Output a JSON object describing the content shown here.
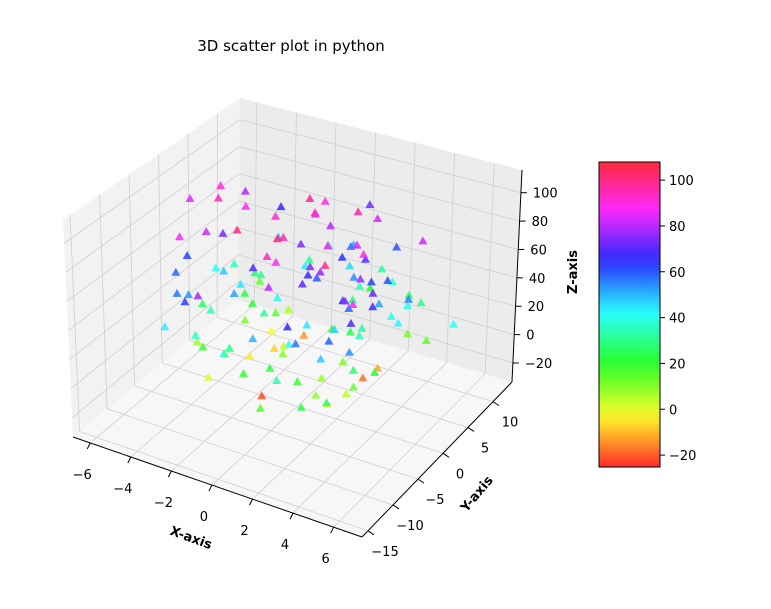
{
  "chart_data": {
    "type": "scatter",
    "projection": "3d",
    "title": "3D scatter plot in python",
    "xlabel": "X-axis",
    "ylabel": "Y-axis",
    "zlabel": "Z-axis",
    "marker": "triangle-up",
    "colormap": "hsv",
    "color_by": "z",
    "grid": true,
    "xlim": [
      -6.85,
      7.4
    ],
    "ylim": [
      -16.2,
      13.8
    ],
    "zlim": [
      -33.4,
      116
    ],
    "xticks": [
      "−6",
      "−4",
      "−2",
      "0",
      "2",
      "4",
      "6"
    ],
    "xtick_values": [
      -6,
      -4,
      -2,
      0,
      2,
      4,
      6
    ],
    "yticks": [
      "−15",
      "−10",
      "−5",
      "0",
      "5",
      "10"
    ],
    "ytick_values": [
      -15,
      -10,
      -5,
      0,
      5,
      10
    ],
    "zticks": [
      "−20",
      "0",
      "20",
      "40",
      "60",
      "80",
      "100"
    ],
    "ztick_values": [
      -20,
      0,
      20,
      40,
      60,
      80,
      100
    ],
    "colorbar": {
      "range": [
        -25.2,
        107.9
      ],
      "ticks": [
        "−20",
        "0",
        "20",
        "40",
        "60",
        "80",
        "100"
      ],
      "tick_values": [
        -20,
        0,
        20,
        40,
        60,
        80,
        100
      ],
      "placement": "right"
    },
    "points": [
      [
        -3.2,
        2.1,
        88
      ],
      [
        1.5,
        -4.2,
        45
      ],
      [
        3.8,
        6.5,
        12
      ],
      [
        -1.2,
        -8.3,
        30
      ],
      [
        2.4,
        3.3,
        70
      ],
      [
        -4.1,
        0.5,
        95
      ],
      [
        0.3,
        9.1,
        52
      ],
      [
        4.5,
        -2.7,
        20
      ],
      [
        -2.6,
        -3.9,
        5
      ],
      [
        1.9,
        7.4,
        83
      ],
      [
        -0.7,
        -11.2,
        38
      ],
      [
        3.1,
        1.8,
        62
      ],
      [
        -3.7,
        5.6,
        27
      ],
      [
        2.8,
        -6.1,
        99
      ],
      [
        -1.9,
        2.9,
        15
      ],
      [
        0.9,
        -1.4,
        74
      ],
      [
        4.2,
        4.7,
        40
      ],
      [
        -4.6,
        -5.3,
        58
      ],
      [
        1.3,
        10.8,
        33
      ],
      [
        -2.2,
        -0.8,
        -5
      ],
      [
        3.5,
        -9.4,
        48
      ],
      [
        -0.4,
        6.2,
        90
      ],
      [
        2.1,
        -3.5,
        8
      ],
      [
        -3.3,
        8.8,
        66
      ],
      [
        0.6,
        -7.6,
        22
      ],
      [
        4.8,
        2.4,
        55
      ],
      [
        -1.6,
        -12.5,
        78
      ],
      [
        2.7,
        5.1,
        -12
      ],
      [
        -4.4,
        1.1,
        42
      ],
      [
        0.2,
        -4.9,
        102
      ],
      [
        3.3,
        -1.1,
        35
      ],
      [
        -2.9,
        -6.8,
        18
      ],
      [
        1.1,
        3.9,
        64
      ],
      [
        -3.9,
        -2.4,
        81
      ],
      [
        4.0,
        8.2,
        29
      ],
      [
        -0.9,
        0.7,
        3
      ],
      [
        2.5,
        -10.3,
        57
      ],
      [
        -4.8,
        3.4,
        92
      ],
      [
        0.7,
        6.9,
        46
      ],
      [
        3.9,
        -4.4,
        13
      ],
      [
        -1.4,
        -3.2,
        69
      ],
      [
        2.2,
        1.5,
        24
      ],
      [
        -3.0,
        7.3,
        50
      ],
      [
        4.6,
        -7.9,
        86
      ],
      [
        -0.2,
        -2.1,
        10
      ],
      [
        1.7,
        4.4,
        97
      ],
      [
        -2.5,
        -9.6,
        37
      ],
      [
        3.6,
        3.0,
        61
      ],
      [
        -4.3,
        -1.7,
        26
      ],
      [
        0.4,
        11.6,
        73
      ],
      [
        2.9,
        -5.6,
        1
      ],
      [
        -1.1,
        5.3,
        44
      ],
      [
        3.2,
        -0.3,
        89
      ],
      [
        -3.5,
        -7.1,
        53
      ],
      [
        1.0,
        2.6,
        17
      ],
      [
        4.4,
        -3.1,
        67
      ],
      [
        -2.0,
        9.4,
        31
      ],
      [
        0.1,
        -6.4,
        94
      ],
      [
        2.6,
        7.9,
        39
      ],
      [
        -4.0,
        -3.8,
        7
      ],
      [
        1.6,
        -2.2,
        76
      ],
      [
        -2.8,
        1.9,
        21
      ],
      [
        3.7,
        -8.7,
        59
      ],
      [
        -0.5,
        4.8,
        85
      ],
      [
        2.0,
        -11.8,
        34
      ],
      [
        -3.6,
        -0.4,
        48
      ],
      [
        4.9,
        5.9,
        14
      ],
      [
        -1.7,
        -5.0,
        100
      ],
      [
        0.8,
        0.3,
        60
      ],
      [
        3.0,
        9.7,
        25
      ],
      [
        -4.5,
        6.7,
        79
      ],
      [
        1.4,
        -7.2,
        41
      ],
      [
        -2.3,
        3.6,
        -2
      ],
      [
        4.1,
        -1.9,
        71
      ],
      [
        -0.3,
        -9.1,
        19
      ],
      [
        2.3,
        2.0,
        84
      ],
      [
        -3.1,
        -4.6,
        36
      ],
      [
        0.5,
        7.8,
        56
      ],
      [
        3.4,
        -3.8,
        4
      ],
      [
        -1.5,
        1.2,
        91
      ],
      [
        4.7,
        0.9,
        43
      ],
      [
        -2.7,
        -10.7,
        63
      ],
      [
        1.2,
        5.7,
        28
      ],
      [
        -4.2,
        -6.0,
        87
      ],
      [
        2.4,
        -0.6,
        11
      ],
      [
        -0.8,
        8.5,
        49
      ],
      [
        3.6,
        -5.3,
        75
      ],
      [
        -3.4,
        2.7,
        23
      ],
      [
        0.0,
        -3.0,
        96
      ],
      [
        1.8,
        3.5,
        54
      ],
      [
        -1.3,
        -1.5,
        32
      ],
      [
        4.3,
        -6.9,
        68
      ],
      [
        -2.1,
        6.0,
        6
      ],
      [
        0.6,
        -8.0,
        80
      ],
      [
        3.9,
        2.7,
        38
      ],
      [
        -4.7,
        -2.9,
        62
      ],
      [
        1.5,
        -12.9,
        16
      ],
      [
        -0.6,
        4.1,
        98
      ],
      [
        2.8,
        -4.0,
        47
      ],
      [
        -3.8,
        0.2,
        72
      ],
      [
        0.9,
        10.2,
        20
      ],
      [
        3.1,
        -2.5,
        58
      ],
      [
        -2.4,
        -7.7,
        2
      ],
      [
        4.5,
        6.1,
        82
      ],
      [
        -1.0,
        -0.2,
        40
      ],
      [
        2.0,
        -9.9,
        65
      ],
      [
        -3.2,
        4.9,
        30
      ],
      [
        0.3,
        -5.5,
        88
      ],
      [
        3.7,
        1.0,
        52
      ],
      [
        -4.0,
        7.6,
        13
      ],
      [
        1.1,
        -3.6,
        70
      ],
      [
        -2.6,
        -1.0,
        45
      ],
      [
        4.2,
        -10.9,
        26
      ],
      [
        -0.1,
        3.2,
        93
      ],
      [
        2.6,
        -6.6,
        9
      ],
      [
        -3.7,
        -8.4,
        57
      ],
      [
        1.3,
        6.6,
        35
      ],
      [
        3.4,
        -1.6,
        77
      ],
      [
        -1.8,
        2.3,
        -8
      ],
      [
        0.4,
        -10.1,
        50
      ],
      [
        6.8,
        3.5,
        42
      ],
      [
        -5.8,
        1.6,
        84
      ],
      [
        2.2,
        4.2,
        -18
      ],
      [
        -1.1,
        -2.6,
        -22
      ],
      [
        0.7,
        -1.0,
        66
      ],
      [
        3.0,
        0.6,
        33
      ],
      [
        -2.0,
        -4.4,
        52
      ],
      [
        1.9,
        -7.4,
        18
      ],
      [
        -3.5,
        -11.4,
        44
      ],
      [
        4.0,
        -4.9,
        27
      ],
      [
        -0.4,
        1.8,
        74
      ],
      [
        2.5,
        8.9,
        60
      ],
      [
        -4.3,
        4.0,
        36
      ],
      [
        1.6,
        -0.9,
        90
      ],
      [
        3.3,
        -12.2,
        23
      ],
      [
        -2.9,
        0.9,
        12
      ],
      [
        0.2,
        5.0,
        79
      ],
      [
        4.6,
        -8.3,
        54
      ],
      [
        -1.6,
        7.1,
        -14
      ],
      [
        2.9,
        -2.9,
        64
      ]
    ]
  }
}
